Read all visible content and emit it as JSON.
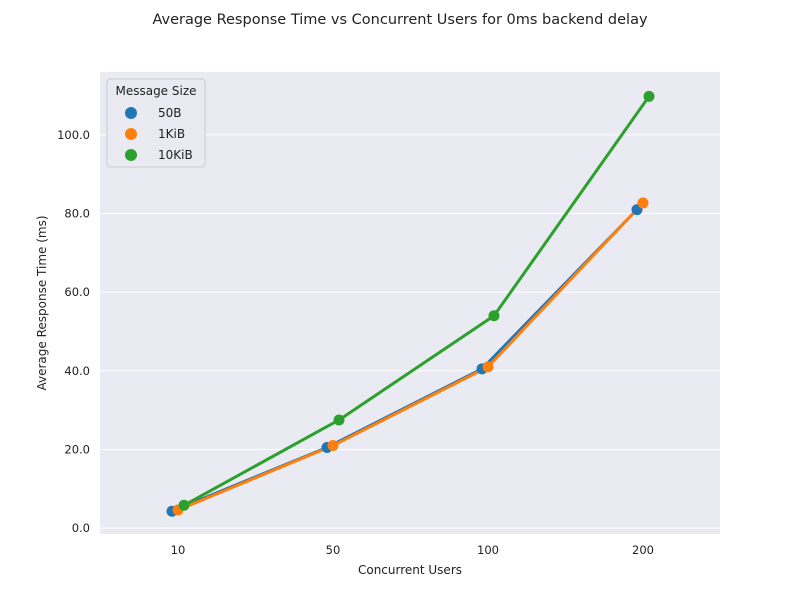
{
  "chart_data": {
    "type": "line",
    "title": "Average Response Time vs Concurrent Users for 0ms backend delay",
    "xlabel": "Concurrent Users",
    "ylabel": "Average Response Time (ms)",
    "categories": [
      "10",
      "50",
      "100",
      "200"
    ],
    "ylim": [
      -1.5,
      116
    ],
    "yticks": [
      0.0,
      20.0,
      40.0,
      60.0,
      80.0,
      100.0
    ],
    "ytick_labels": [
      "0.0",
      "20.0",
      "40.0",
      "60.0",
      "80.0",
      "100.0"
    ],
    "grid": true,
    "legend": {
      "title": "Message Size",
      "position": "top-left"
    },
    "series": [
      {
        "name": "50B",
        "color": "#1f77b4",
        "values": [
          4.3,
          20.5,
          40.5,
          81.0
        ]
      },
      {
        "name": "1KiB",
        "color": "#ff7f0e",
        "values": [
          4.6,
          21.0,
          41.0,
          82.7
        ]
      },
      {
        "name": "10KiB",
        "color": "#2ca02c",
        "values": [
          5.8,
          27.5,
          54.0,
          109.8
        ]
      }
    ]
  }
}
